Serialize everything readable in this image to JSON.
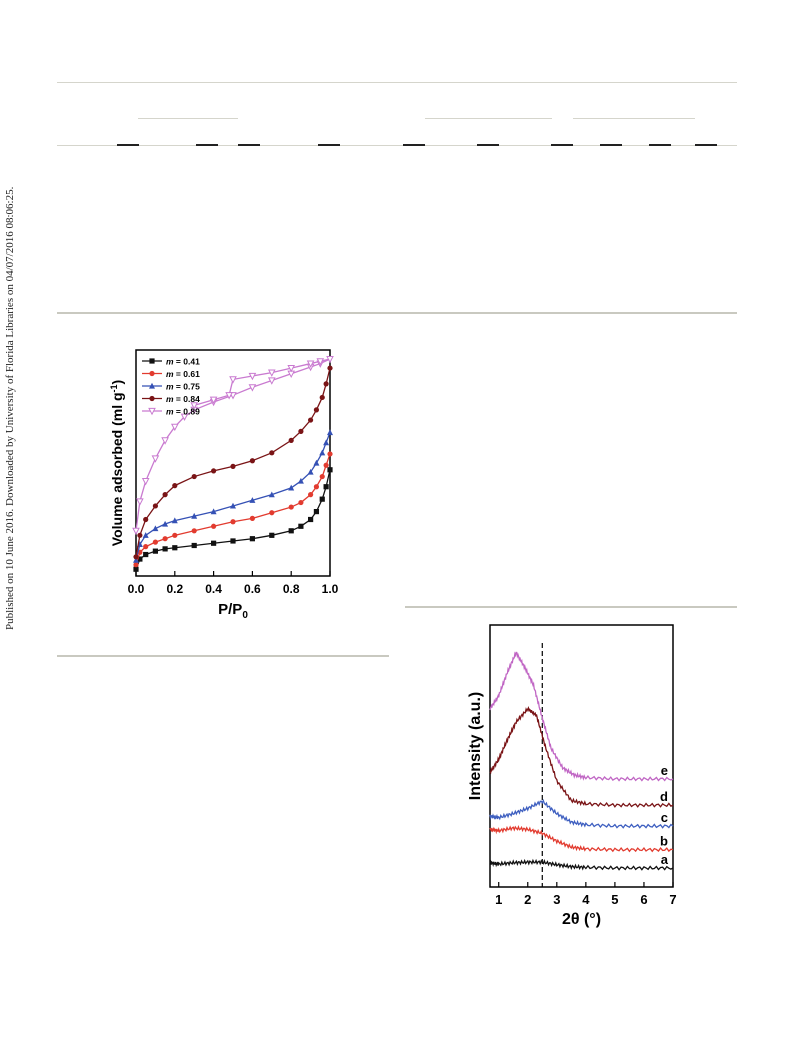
{
  "side_note": "Published on 10 June 2016. Downloaded by University of Florida Libraries on 04/07/2016 08:06:25.",
  "chart_data": [
    {
      "type": "line",
      "xlabel": "P/P0",
      "ylabel": "Volume adsorbed (ml g-1)",
      "xlim": [
        0.0,
        1.0
      ],
      "xticks": [
        "0.0",
        "0.2",
        "0.4",
        "0.6",
        "0.8",
        "1.0"
      ],
      "legend_position": "top-left",
      "series": [
        {
          "name": "m = 0.41",
          "color": "#111111",
          "marker": "square",
          "x": [
            0.0,
            0.02,
            0.05,
            0.1,
            0.15,
            0.2,
            0.3,
            0.4,
            0.5,
            0.6,
            0.7,
            0.8,
            0.85,
            0.9,
            0.93,
            0.96,
            0.98,
            1.0
          ],
          "y": [
            6,
            15,
            19,
            22,
            24,
            25,
            27,
            29,
            31,
            33,
            36,
            40,
            44,
            50,
            57,
            68,
            79,
            94
          ]
        },
        {
          "name": "m = 0.61",
          "color": "#e23b2f",
          "marker": "circle",
          "x": [
            0.0,
            0.02,
            0.05,
            0.1,
            0.15,
            0.2,
            0.3,
            0.4,
            0.5,
            0.6,
            0.7,
            0.8,
            0.85,
            0.9,
            0.93,
            0.96,
            0.98,
            1.0
          ],
          "y": [
            10,
            21,
            26,
            30,
            33,
            36,
            40,
            44,
            48,
            51,
            56,
            61,
            65,
            72,
            79,
            88,
            98,
            108
          ]
        },
        {
          "name": "m = 0.75",
          "color": "#3551b5",
          "marker": "triangle",
          "x": [
            0.0,
            0.02,
            0.05,
            0.1,
            0.15,
            0.2,
            0.3,
            0.4,
            0.5,
            0.6,
            0.7,
            0.8,
            0.85,
            0.9,
            0.93,
            0.96,
            0.98,
            1.0
          ],
          "y": [
            14,
            28,
            36,
            42,
            46,
            49,
            53,
            57,
            62,
            67,
            72,
            78,
            84,
            92,
            100,
            109,
            118,
            127
          ]
        },
        {
          "name": "m = 0.84",
          "color": "#7a1416",
          "marker": "circle",
          "x": [
            0.0,
            0.02,
            0.05,
            0.1,
            0.15,
            0.2,
            0.3,
            0.4,
            0.5,
            0.6,
            0.7,
            0.8,
            0.85,
            0.9,
            0.93,
            0.96,
            0.98,
            1.0
          ],
          "y": [
            17,
            36,
            50,
            62,
            72,
            80,
            88,
            93,
            97,
            102,
            109,
            120,
            128,
            138,
            147,
            158,
            170,
            184
          ]
        },
        {
          "name": "m = 0.89",
          "color": "#c97ad0",
          "marker": "open-triangle",
          "x": [
            0.0,
            0.02,
            0.05,
            0.1,
            0.15,
            0.2,
            0.25,
            0.3,
            0.4,
            0.5,
            0.6,
            0.7,
            0.8,
            0.9,
            0.95,
            1.0,
            0.95,
            0.9,
            0.8,
            0.7,
            0.6,
            0.5,
            0.48,
            0.4,
            0.3
          ],
          "y": [
            40,
            66,
            84,
            104,
            120,
            132,
            141,
            147,
            154,
            160,
            167,
            173,
            179,
            185,
            188,
            192,
            190,
            188,
            184,
            180,
            177,
            174,
            160,
            156,
            151
          ]
        }
      ]
    },
    {
      "type": "line",
      "xlabel": "2θ (°)",
      "ylabel": "Intensity (a.u.)",
      "xlim": [
        0.7,
        7.0
      ],
      "xticks": [
        "1",
        "2",
        "3",
        "4",
        "5",
        "6",
        "7"
      ],
      "dashed_line_x": 2.5,
      "series": [
        {
          "name": "a",
          "color": "#111111",
          "x": [
            0.7,
            1.0,
            1.5,
            2.0,
            2.5,
            3.0,
            3.5,
            4.0,
            5.0,
            6.0,
            7.0
          ],
          "y": [
            0.37,
            0.35,
            0.37,
            0.38,
            0.38,
            0.34,
            0.31,
            0.3,
            0.29,
            0.29,
            0.29
          ]
        },
        {
          "name": "b",
          "color": "#e23b2f",
          "x": [
            0.7,
            1.0,
            1.5,
            2.0,
            2.5,
            3.0,
            3.5,
            4.0,
            5.0,
            6.0,
            7.0
          ],
          "y": [
            0.88,
            0.86,
            0.9,
            0.88,
            0.82,
            0.7,
            0.61,
            0.58,
            0.57,
            0.57,
            0.57
          ]
        },
        {
          "name": "c",
          "color": "#3e5fc0",
          "x": [
            0.7,
            1.0,
            1.5,
            2.0,
            2.5,
            3.0,
            3.5,
            4.0,
            5.0,
            6.0,
            7.0
          ],
          "y": [
            1.08,
            1.06,
            1.12,
            1.2,
            1.31,
            1.12,
            0.99,
            0.95,
            0.93,
            0.93,
            0.93
          ]
        },
        {
          "name": "d",
          "color": "#7a1416",
          "x": [
            0.7,
            1.0,
            1.3,
            1.6,
            2.0,
            2.3,
            2.6,
            3.0,
            3.5,
            4.0,
            5.0,
            6.0,
            7.0
          ],
          "y": [
            1.75,
            1.95,
            2.25,
            2.52,
            2.72,
            2.62,
            2.15,
            1.62,
            1.32,
            1.27,
            1.25,
            1.25,
            1.25
          ]
        },
        {
          "name": "e",
          "color": "#c066c4",
          "x": [
            0.7,
            1.0,
            1.3,
            1.6,
            1.9,
            2.2,
            2.5,
            2.8,
            3.2,
            3.6,
            4.0,
            5.0,
            6.0,
            7.0
          ],
          "y": [
            2.72,
            2.92,
            3.28,
            3.58,
            3.35,
            3.08,
            2.58,
            2.12,
            1.82,
            1.71,
            1.67,
            1.65,
            1.65,
            1.65
          ]
        }
      ]
    }
  ]
}
